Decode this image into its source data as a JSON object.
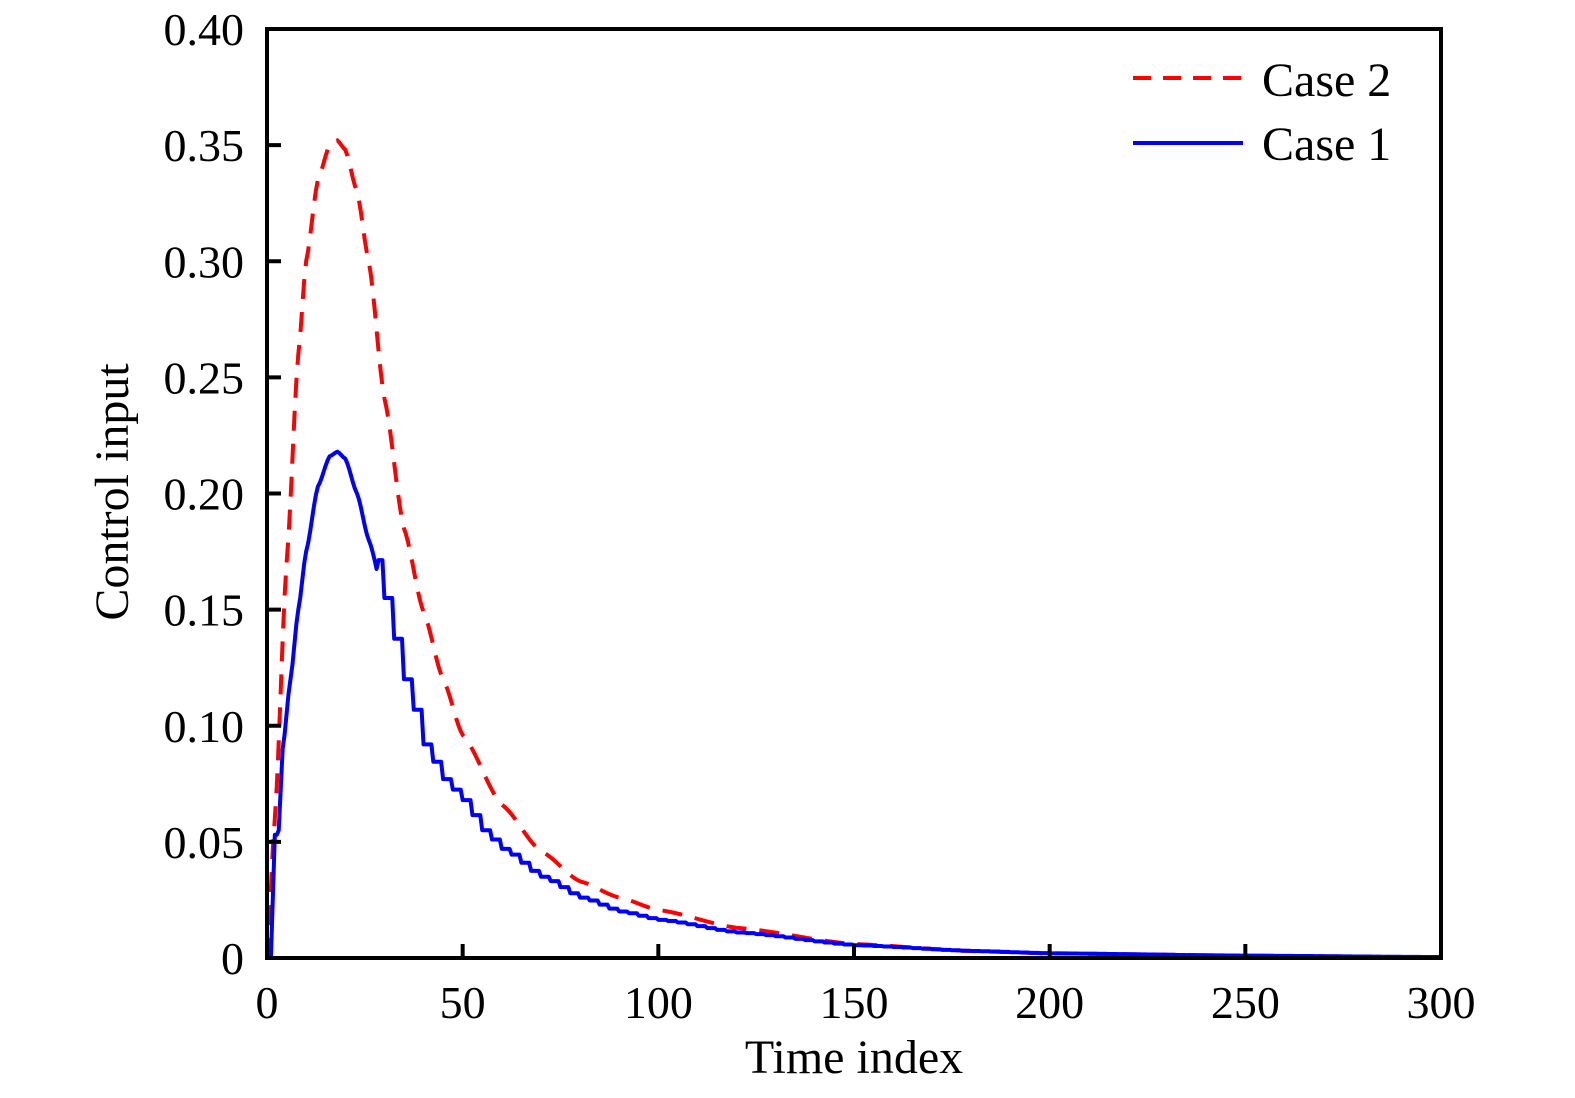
{
  "chart_data": {
    "type": "line",
    "title": "",
    "xlabel": "Time index",
    "ylabel": "Control input",
    "xlim": [
      0,
      300
    ],
    "ylim": [
      0,
      0.4
    ],
    "xticks": [
      0,
      50,
      100,
      150,
      200,
      250,
      300
    ],
    "xtick_labels": [
      "0",
      "50",
      "100",
      "150",
      "200",
      "250",
      "300"
    ],
    "yticks": [
      0,
      0.05,
      0.1,
      0.15,
      0.2,
      0.25,
      0.3,
      0.35,
      0.4
    ],
    "ytick_labels": [
      "0",
      "0.05",
      "0.10",
      "0.15",
      "0.20",
      "0.25",
      "0.30",
      "0.35",
      "0.40"
    ],
    "grid": false,
    "legend_position": "top-right",
    "series": [
      {
        "name": "Case 2",
        "style": "dashed",
        "color": "#ff0000",
        "x": [
          0,
          2,
          5,
          8,
          10,
          13,
          16,
          18,
          20,
          23,
          26,
          30,
          35,
          40,
          45,
          50,
          60,
          70,
          80,
          90,
          100,
          120,
          150,
          180,
          200,
          250,
          300
        ],
        "y": [
          0,
          0.06,
          0.17,
          0.26,
          0.3,
          0.335,
          0.35,
          0.352,
          0.348,
          0.33,
          0.3,
          0.241,
          0.185,
          0.149,
          0.12,
          0.096,
          0.066,
          0.046,
          0.033,
          0.026,
          0.0207,
          0.013,
          0.006,
          0.003,
          0.002,
          0.001,
          0.0003
        ]
      },
      {
        "name": "Case 1",
        "style": "solid-staircase",
        "color": "#0000ff",
        "x": [
          1,
          2,
          3,
          4,
          6,
          8,
          10,
          13,
          16,
          18,
          20,
          23,
          26,
          30,
          32,
          35,
          38,
          40,
          45,
          50,
          55,
          60,
          70,
          80,
          90,
          100,
          120,
          150,
          180,
          200,
          250,
          300
        ],
        "y": [
          0,
          0.053,
          0.055,
          0.09,
          0.12,
          0.15,
          0.175,
          0.203,
          0.216,
          0.218,
          0.215,
          0.2,
          0.18,
          0.155,
          0.14,
          0.12,
          0.105,
          0.092,
          0.077,
          0.068,
          0.055,
          0.047,
          0.035,
          0.026,
          0.02,
          0.0164,
          0.011,
          0.0055,
          0.003,
          0.002,
          0.001,
          0.0004
        ]
      }
    ],
    "legend": [
      {
        "label": "Case 2",
        "color": "#ff0000",
        "style": "dashed"
      },
      {
        "label": "Case 1",
        "color": "#0000ff",
        "style": "solid"
      }
    ]
  }
}
